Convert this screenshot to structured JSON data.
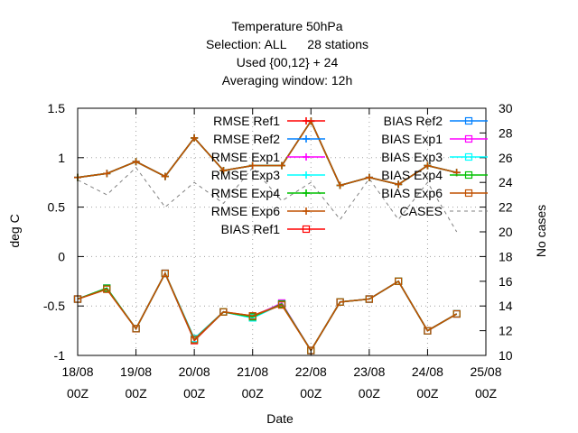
{
  "chart_data": {
    "type": "line",
    "title_lines": [
      "Temperature 50hPa",
      "Selection: ALL      28 stations",
      "Used {00,12} + 24",
      "Averaging window: 12h"
    ],
    "xlabel": "Date",
    "ylabel": "deg C",
    "y2label": "No cases",
    "x_tick_labels": [
      {
        "date": "18/08",
        "time": "00Z"
      },
      {
        "date": "19/08",
        "time": "00Z"
      },
      {
        "date": "20/08",
        "time": "00Z"
      },
      {
        "date": "21/08",
        "time": "00Z"
      },
      {
        "date": "22/08",
        "time": "00Z"
      },
      {
        "date": "23/08",
        "time": "00Z"
      },
      {
        "date": "24/08",
        "time": "00Z"
      },
      {
        "date": "25/08",
        "time": "00Z"
      }
    ],
    "xlim_days": [
      0,
      7
    ],
    "ylim": [
      -1,
      1.5
    ],
    "y_ticks": [
      "-1",
      "-0.5",
      "0",
      "0.5",
      "1",
      "1.5"
    ],
    "y2lim": [
      10,
      30
    ],
    "y2_ticks": [
      "10",
      "12",
      "14",
      "16",
      "18",
      "20",
      "22",
      "24",
      "26",
      "28",
      "30"
    ],
    "grid": true,
    "legend_position": "top-right",
    "x": [
      0,
      0.5,
      1,
      1.5,
      2,
      2.5,
      3,
      3.5,
      4,
      4.5,
      5,
      5.5,
      6,
      6.5
    ],
    "series": [
      {
        "name": "RMSE Ref1",
        "axis": "y1",
        "color": "#ff0000",
        "marker": "plus",
        "values": [
          0.8,
          0.84,
          0.96,
          0.81,
          1.2,
          0.87,
          0.92,
          0.92,
          1.37,
          0.72,
          0.8,
          0.73,
          0.92,
          0.85
        ]
      },
      {
        "name": "RMSE Ref2",
        "axis": "y1",
        "color": "#0080ff",
        "marker": "plus",
        "values": [
          0.8,
          0.84,
          0.96,
          0.81,
          1.2,
          0.87,
          0.92,
          0.92,
          1.37,
          0.72,
          0.8,
          0.73,
          0.92,
          0.85
        ]
      },
      {
        "name": "RMSE Exp1",
        "axis": "y1",
        "color": "#ff00ff",
        "marker": "plus",
        "values": [
          0.8,
          0.84,
          0.96,
          0.81,
          1.2,
          0.87,
          0.92,
          0.92,
          1.37,
          0.72,
          0.8,
          0.73,
          0.92,
          0.85
        ]
      },
      {
        "name": "RMSE Exp3",
        "axis": "y1",
        "color": "#00ffff",
        "marker": "plus",
        "values": [
          0.8,
          0.84,
          0.96,
          0.81,
          1.2,
          0.87,
          0.92,
          0.92,
          1.37,
          0.72,
          0.8,
          0.73,
          0.92,
          0.85
        ]
      },
      {
        "name": "RMSE Exp4",
        "axis": "y1",
        "color": "#00c000",
        "marker": "plus",
        "values": [
          0.8,
          0.84,
          0.96,
          0.81,
          1.2,
          0.87,
          0.92,
          0.92,
          1.37,
          0.72,
          0.8,
          0.73,
          0.92,
          0.85
        ]
      },
      {
        "name": "RMSE Exp6",
        "axis": "y1",
        "color": "#c05000",
        "marker": "plus",
        "values": [
          0.8,
          0.84,
          0.96,
          0.81,
          1.2,
          0.87,
          0.92,
          0.92,
          1.37,
          0.72,
          0.8,
          0.73,
          0.92,
          0.85
        ]
      },
      {
        "name": "BIAS Ref1",
        "axis": "y1",
        "color": "#ff0000",
        "marker": "square",
        "values": [
          -0.43,
          -0.33,
          -0.73,
          -0.17,
          -0.85,
          -0.56,
          -0.6,
          -0.48,
          -0.95,
          -0.46,
          -0.43,
          -0.25,
          -0.75,
          -0.58
        ]
      },
      {
        "name": "BIAS Ref2",
        "axis": "y1",
        "color": "#0080ff",
        "marker": "square",
        "values": [
          -0.43,
          -0.32,
          -0.73,
          -0.17,
          -0.83,
          -0.56,
          -0.62,
          -0.48,
          -0.95,
          -0.46,
          -0.43,
          -0.25,
          -0.75,
          -0.58
        ]
      },
      {
        "name": "BIAS Exp1",
        "axis": "y1",
        "color": "#ff00ff",
        "marker": "square",
        "values": [
          -0.43,
          -0.32,
          -0.73,
          -0.17,
          -0.84,
          -0.56,
          -0.61,
          -0.47,
          -0.95,
          -0.46,
          -0.43,
          -0.25,
          -0.75,
          -0.58
        ]
      },
      {
        "name": "BIAS Exp3",
        "axis": "y1",
        "color": "#00ffff",
        "marker": "square",
        "values": [
          -0.43,
          -0.32,
          -0.73,
          -0.17,
          -0.83,
          -0.56,
          -0.62,
          -0.48,
          -0.95,
          -0.46,
          -0.43,
          -0.25,
          -0.75,
          -0.58
        ]
      },
      {
        "name": "BIAS Exp4",
        "axis": "y1",
        "color": "#00c000",
        "marker": "square",
        "values": [
          -0.43,
          -0.32,
          -0.73,
          -0.17,
          -0.84,
          -0.56,
          -0.61,
          -0.48,
          -0.95,
          -0.46,
          -0.43,
          -0.25,
          -0.75,
          -0.58
        ]
      },
      {
        "name": "BIAS Exp6",
        "axis": "y1",
        "color": "#c05000",
        "marker": "square",
        "values": [
          -0.43,
          -0.33,
          -0.73,
          -0.17,
          -0.84,
          -0.56,
          -0.6,
          -0.49,
          -0.95,
          -0.46,
          -0.43,
          -0.25,
          -0.75,
          -0.58
        ]
      },
      {
        "name": "CASES",
        "axis": "y2",
        "color": "#808080",
        "marker": "none",
        "dash": true,
        "values": [
          24.2,
          23,
          25.2,
          22,
          24,
          22.3,
          25.2,
          22.5,
          24,
          21,
          24.3,
          21,
          24,
          20
        ]
      }
    ]
  }
}
